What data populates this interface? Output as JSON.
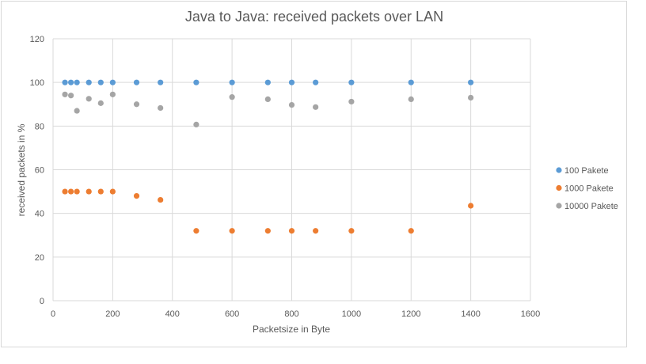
{
  "chart_data": {
    "type": "scatter",
    "title": "Java to Java: received packets over LAN",
    "xlabel": "Packetsize in Byte",
    "ylabel": "received packets in %",
    "xlim": [
      0,
      1600
    ],
    "ylim": [
      0,
      120
    ],
    "x_ticks": [
      "0",
      "200",
      "400",
      "600",
      "800",
      "1000",
      "1200",
      "1400",
      "1600"
    ],
    "y_ticks": [
      "0",
      "20",
      "40",
      "60",
      "80",
      "100",
      "120"
    ],
    "grid": "on",
    "legend_position": "right",
    "series": [
      {
        "name": "100 Pakete",
        "color": "#5b9bd5",
        "points": [
          [
            40,
            100
          ],
          [
            60,
            100
          ],
          [
            80,
            100
          ],
          [
            120,
            100
          ],
          [
            160,
            100
          ],
          [
            200,
            100
          ],
          [
            280,
            100
          ],
          [
            360,
            100
          ],
          [
            480,
            100
          ],
          [
            600,
            100
          ],
          [
            720,
            100
          ],
          [
            800,
            100
          ],
          [
            880,
            100
          ],
          [
            1000,
            100
          ],
          [
            1200,
            100
          ],
          [
            1400,
            100
          ]
        ]
      },
      {
        "name": "1000 Pakete",
        "color": "#ed7d31",
        "points": [
          [
            40,
            50
          ],
          [
            60,
            50
          ],
          [
            80,
            50
          ],
          [
            120,
            50
          ],
          [
            160,
            50
          ],
          [
            200,
            50
          ],
          [
            280,
            48
          ],
          [
            360,
            46.2
          ],
          [
            480,
            32
          ],
          [
            600,
            32
          ],
          [
            720,
            32
          ],
          [
            800,
            32
          ],
          [
            880,
            32
          ],
          [
            1000,
            32
          ],
          [
            1200,
            32
          ],
          [
            1400,
            43.5
          ]
        ]
      },
      {
        "name": "10000 Pakete",
        "color": "#a5a5a5",
        "points": [
          [
            40,
            94.5
          ],
          [
            60,
            94
          ],
          [
            80,
            87
          ],
          [
            120,
            92.5
          ],
          [
            160,
            90.5
          ],
          [
            200,
            94.5
          ],
          [
            280,
            90
          ],
          [
            360,
            88.3
          ],
          [
            480,
            80.7
          ],
          [
            600,
            93.3
          ],
          [
            720,
            92.3
          ],
          [
            800,
            89.7
          ],
          [
            880,
            88.7
          ],
          [
            1000,
            91.2
          ],
          [
            1200,
            92.3
          ],
          [
            1400,
            93
          ]
        ]
      }
    ]
  }
}
